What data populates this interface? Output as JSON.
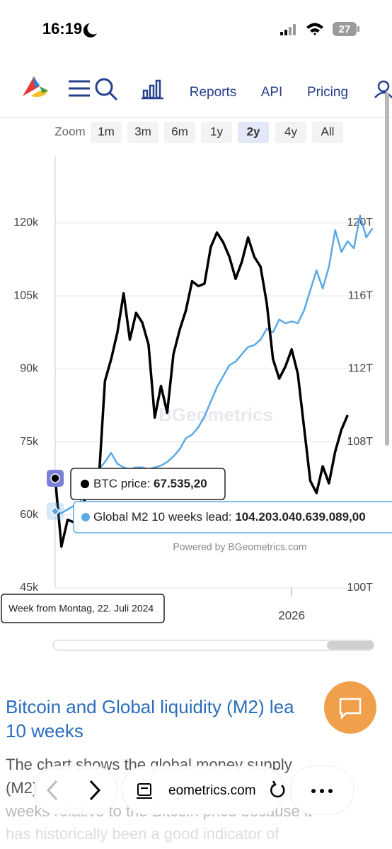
{
  "status": {
    "time": "16:19",
    "battery": "27"
  },
  "nav": {
    "items": [
      "Reports",
      "API",
      "Pricing"
    ]
  },
  "zoom": {
    "label": "Zoom",
    "buttons": [
      "1m",
      "3m",
      "6m",
      "1y",
      "2y",
      "4y",
      "All"
    ],
    "selected": 4
  },
  "chart_data": {
    "type": "line",
    "categories": [
      null,
      null,
      null,
      null,
      null,
      null,
      null,
      null,
      null,
      null,
      null,
      null,
      null,
      null,
      null,
      null,
      null,
      null,
      null,
      null,
      null,
      null,
      null,
      null,
      null,
      null,
      null,
      null,
      null,
      null,
      null,
      null,
      null,
      null,
      null,
      null,
      null,
      null,
      "2026",
      null,
      null,
      null,
      null,
      null,
      null,
      null,
      null,
      null,
      null,
      null,
      null,
      null
    ],
    "series": [
      {
        "name": "BTC price",
        "color": "#000000",
        "values": [
          67535.2,
          53500,
          59000,
          58500,
          60500,
          64000,
          65500,
          67000,
          87500,
          92000,
          97500,
          105500,
          96000,
          101500,
          99500,
          95000,
          80000,
          86500,
          81000,
          93000,
          98000,
          102000,
          108000,
          107000,
          107500,
          115000,
          118000,
          116000,
          113000,
          108500,
          112000,
          117000,
          113000,
          111000,
          103500,
          92000,
          88000,
          90500,
          94000,
          89000,
          78000,
          67000,
          64500,
          70000,
          66500,
          73000,
          77500,
          80500,
          null,
          null,
          null,
          null
        ]
      },
      {
        "name": "Global M2 10 weeks lead",
        "color": "#5aa9e6",
        "axis": "y2",
        "values": [
          104.2,
          104.1,
          104.3,
          104.5,
          104.7,
          105.3,
          106.0,
          106.5,
          106.9,
          107.4,
          106.8,
          106.6,
          106.5,
          106.6,
          106.6,
          106.5,
          106.6,
          106.7,
          106.9,
          107.2,
          107.6,
          108.2,
          108.4,
          108.8,
          109.4,
          110.2,
          111.0,
          111.6,
          112.2,
          112.4,
          112.8,
          113.2,
          113.3,
          113.6,
          114.2,
          114.0,
          114.7,
          114.5,
          114.6,
          114.5,
          115.2,
          116.3,
          117.4,
          116.4,
          117.6,
          119.6,
          118.4,
          119.0,
          118.6,
          120.4,
          119.2,
          119.7
        ]
      }
    ],
    "ylim": [
      45000,
      133800
    ],
    "yticks": [
      {
        "value": 45000,
        "label": "45k"
      },
      {
        "value": 60000,
        "label": "60k"
      },
      {
        "value": 75000,
        "label": "75k"
      },
      {
        "value": 90000,
        "label": "90k"
      },
      {
        "value": 105000,
        "label": "105k"
      },
      {
        "value": 120000,
        "label": "120k"
      }
    ],
    "y2lim": [
      100,
      123.68
    ],
    "y2ticks": [
      {
        "value": 100,
        "label": "100T"
      },
      {
        "value": 108,
        "label": "108T"
      },
      {
        "value": 112,
        "label": "112T"
      },
      {
        "value": 116,
        "label": "116T"
      },
      {
        "value": 120,
        "label": "120T"
      }
    ],
    "grid": true,
    "tooltip": {
      "title": "Week from Montag, 22. Juli 2024",
      "items": [
        {
          "label": "BTC price:",
          "value": "67.535,20"
        },
        {
          "label": "Global M2 10 weeks lead:",
          "value": "104.203.040.639.089,00"
        }
      ]
    },
    "credit": "Powered by BGeometrics.com",
    "watermark": "BGeometrics"
  },
  "article": {
    "title_lines": [
      "Bitcoin and Global liquidity (M2) lea",
      "10 weeks"
    ],
    "paragraph_lines": [
      "The chart shows the global money supply",
      "(M2)",
      "weeks relative to the Bitcoin price because it",
      "has historically been a good indicator of"
    ]
  },
  "browser": {
    "url": "eometrics.com"
  }
}
